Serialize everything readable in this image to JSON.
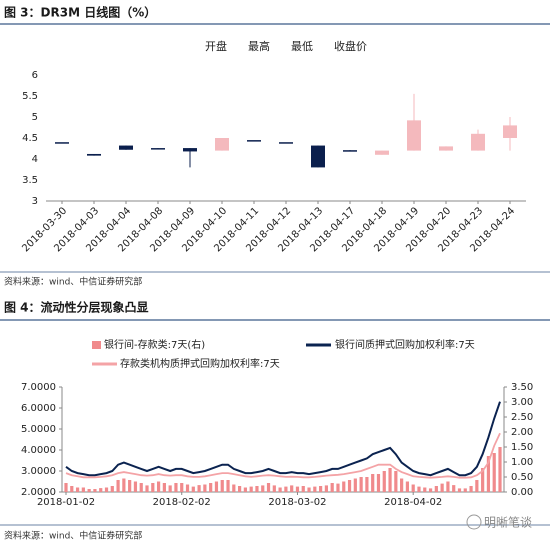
{
  "chart_data": [
    {
      "type": "candlestick",
      "title": "图 3：DR3M 日线图（%）",
      "fields": [
        "开盘",
        "最高",
        "最低",
        "收盘价"
      ],
      "categories": [
        "2018-03-30",
        "2018-04-03",
        "2018-04-04",
        "2018-04-08",
        "2018-04-09",
        "2018-04-10",
        "2018-04-11",
        "2018-04-12",
        "2018-04-13",
        "2018-04-17",
        "2018-04-18",
        "2018-04-19",
        "2018-04-20",
        "2018-04-23",
        "2018-04-24"
      ],
      "open": [
        4.4,
        4.12,
        4.32,
        4.26,
        4.26,
        4.2,
        4.45,
        4.4,
        4.32,
        4.21,
        4.1,
        4.2,
        4.2,
        4.2,
        4.5
      ],
      "high": [
        4.4,
        4.12,
        4.32,
        4.26,
        4.26,
        4.5,
        4.45,
        4.4,
        4.32,
        4.21,
        4.2,
        5.55,
        4.3,
        4.7,
        5.0
      ],
      "low": [
        4.4,
        4.08,
        4.22,
        4.24,
        3.8,
        4.2,
        4.45,
        4.4,
        3.8,
        4.19,
        4.1,
        4.2,
        4.2,
        4.2,
        4.2
      ],
      "close": [
        4.4,
        4.08,
        4.22,
        4.24,
        4.18,
        4.5,
        4.45,
        4.4,
        3.8,
        4.19,
        4.2,
        4.92,
        4.3,
        4.6,
        4.8
      ],
      "up_color": "#f4b9bd",
      "down_color": "#0b1f4d",
      "ylim": [
        3,
        6
      ],
      "yticks": [
        3,
        3.5,
        4,
        4.5,
        5,
        5.5,
        6
      ],
      "source": "资料来源：wind、中信证券研究部"
    },
    {
      "type": "bar-line",
      "title": "图 4：流动性分层现象凸显",
      "categories": [
        "2018-01-02",
        null,
        null,
        null,
        null,
        null,
        null,
        null,
        null,
        null,
        null,
        null,
        null,
        null,
        null,
        null,
        null,
        null,
        null,
        null,
        "2018-02-02",
        null,
        null,
        null,
        null,
        null,
        null,
        null,
        null,
        null,
        null,
        null,
        null,
        null,
        null,
        null,
        null,
        null,
        null,
        null,
        "2018-03-02",
        null,
        null,
        null,
        null,
        null,
        null,
        null,
        null,
        null,
        null,
        null,
        null,
        null,
        null,
        null,
        null,
        null,
        null,
        null,
        "2018-04-02",
        null,
        null,
        null,
        null,
        null,
        null,
        null,
        null,
        null,
        null,
        null,
        null,
        null,
        null,
        null
      ],
      "series": [
        {
          "name": "银行间-存款类:7天(右)",
          "type": "bar",
          "axis": "y2",
          "color": "#f08a8c",
          "values": [
            0.3,
            0.2,
            0.15,
            0.15,
            0.1,
            0.1,
            0.13,
            0.15,
            0.2,
            0.4,
            0.45,
            0.4,
            0.35,
            0.3,
            0.22,
            0.3,
            0.35,
            0.3,
            0.22,
            0.3,
            0.3,
            0.25,
            0.18,
            0.23,
            0.25,
            0.3,
            0.35,
            0.4,
            0.4,
            0.25,
            0.2,
            0.15,
            0.18,
            0.2,
            0.22,
            0.3,
            0.22,
            0.15,
            0.18,
            0.22,
            0.18,
            0.2,
            0.15,
            0.18,
            0.2,
            0.22,
            0.3,
            0.28,
            0.35,
            0.4,
            0.45,
            0.5,
            0.5,
            0.6,
            0.6,
            0.7,
            0.8,
            0.7,
            0.45,
            0.35,
            0.25,
            0.18,
            0.15,
            0.12,
            0.2,
            0.28,
            0.35,
            0.23,
            0.12,
            0.12,
            0.2,
            0.4,
            0.8,
            1.2,
            1.3,
            1.5
          ]
        },
        {
          "name": "银行间质押式回购加权利率:7天",
          "type": "line",
          "color": "#0b2350",
          "values": [
            3.2,
            3.0,
            2.9,
            2.85,
            2.8,
            2.8,
            2.85,
            2.9,
            3.0,
            3.3,
            3.4,
            3.3,
            3.2,
            3.1,
            3.0,
            3.1,
            3.2,
            3.1,
            3.0,
            3.1,
            3.1,
            3.0,
            2.9,
            2.95,
            3.0,
            3.1,
            3.2,
            3.3,
            3.3,
            3.1,
            3.0,
            2.9,
            2.9,
            2.95,
            3.0,
            3.1,
            3.0,
            2.9,
            2.9,
            2.95,
            2.9,
            2.9,
            2.85,
            2.9,
            2.95,
            3.0,
            3.1,
            3.1,
            3.2,
            3.3,
            3.4,
            3.5,
            3.6,
            3.8,
            3.9,
            4.0,
            4.1,
            3.8,
            3.4,
            3.2,
            3.0,
            2.9,
            2.85,
            2.8,
            2.9,
            3.0,
            3.1,
            2.95,
            2.8,
            2.8,
            2.9,
            3.2,
            3.8,
            4.6,
            5.5,
            6.3
          ]
        },
        {
          "name": "存款类机构质押式回购加权利率:7天",
          "type": "line",
          "color": "#f4a3a6",
          "values": [
            2.9,
            2.8,
            2.75,
            2.7,
            2.7,
            2.7,
            2.72,
            2.75,
            2.8,
            2.9,
            2.95,
            2.9,
            2.85,
            2.8,
            2.78,
            2.8,
            2.85,
            2.8,
            2.78,
            2.8,
            2.8,
            2.75,
            2.72,
            2.72,
            2.75,
            2.8,
            2.85,
            2.9,
            2.9,
            2.85,
            2.8,
            2.75,
            2.72,
            2.75,
            2.78,
            2.8,
            2.78,
            2.75,
            2.72,
            2.73,
            2.72,
            2.7,
            2.7,
            2.72,
            2.75,
            2.78,
            2.8,
            2.82,
            2.85,
            2.9,
            2.95,
            3.0,
            3.1,
            3.2,
            3.3,
            3.3,
            3.3,
            3.1,
            2.95,
            2.85,
            2.75,
            2.72,
            2.7,
            2.68,
            2.7,
            2.72,
            2.75,
            2.72,
            2.68,
            2.68,
            2.7,
            2.8,
            3.0,
            3.4,
            4.2,
            4.8
          ]
        }
      ],
      "ylim": [
        2,
        7
      ],
      "yticks": [
        {
          "value": 2,
          "label": "2.0000"
        },
        {
          "value": 3,
          "label": "3.0000"
        },
        {
          "value": 4,
          "label": "4.0000"
        },
        {
          "value": 5,
          "label": "5.0000"
        },
        {
          "value": 6,
          "label": "6.0000"
        },
        {
          "value": 7,
          "label": "7.0000"
        }
      ],
      "y2lim": [
        0,
        3.5
      ],
      "y2ticks": [
        {
          "value": 0,
          "label": "0.00"
        },
        {
          "value": 0.5,
          "label": "0.50"
        },
        {
          "value": 1,
          "label": "1.00"
        },
        {
          "value": 1.5,
          "label": "1.50"
        },
        {
          "value": 2,
          "label": "2.00"
        },
        {
          "value": 2.5,
          "label": "2.50"
        },
        {
          "value": 3,
          "label": "3.00"
        },
        {
          "value": 3.5,
          "label": "3.50"
        }
      ],
      "source": "资料来源：wind、中信证券研究部"
    }
  ],
  "watermark": "明晰笔谈"
}
